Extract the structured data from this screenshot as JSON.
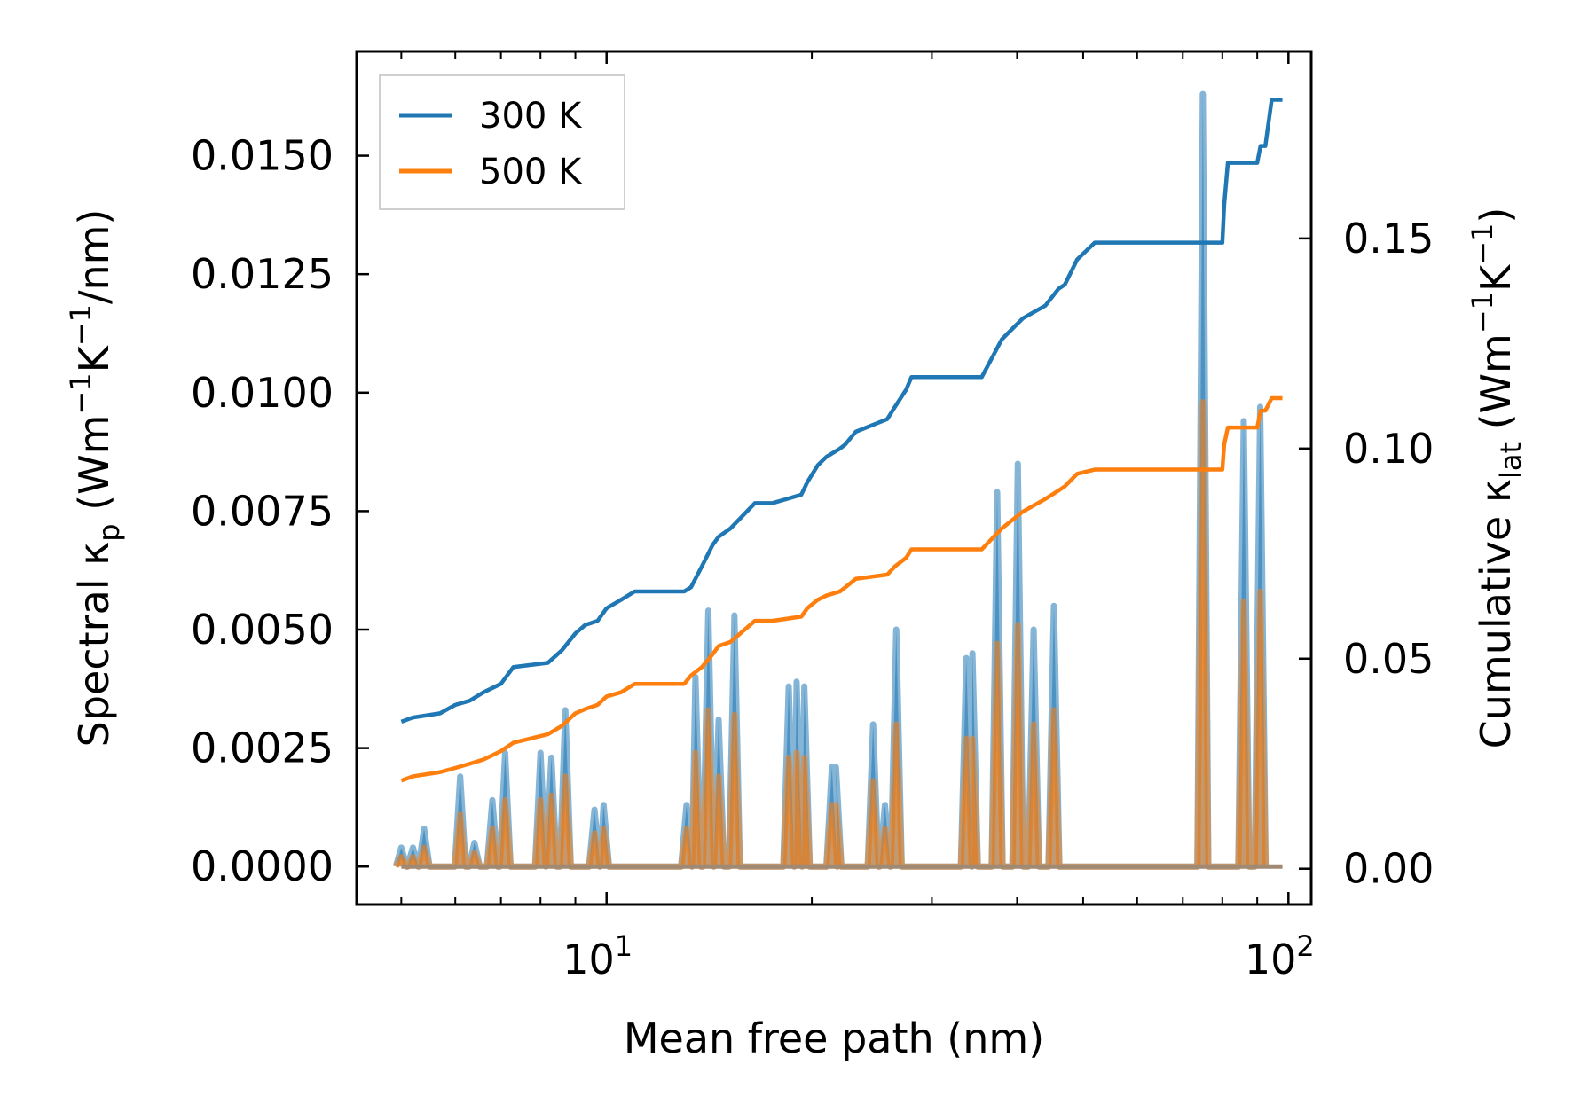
{
  "chart_data": {
    "type": "line",
    "xlabel": "Mean free path (nm)",
    "x_scale": "log",
    "xlim": [
      4.3,
      108
    ],
    "x_ticks": [
      {
        "value": 10,
        "base": "10",
        "exp": "1"
      },
      {
        "value": 100,
        "base": "10",
        "exp": "2"
      }
    ],
    "ylabel_left": {
      "pre": "Spectral κ",
      "sub": "p",
      "mid1": " (Wm",
      "sup1": "−1",
      "mid2": "K",
      "sup2": "−1",
      "post": "/nm)"
    },
    "ylabel_right": {
      "pre": "Cumulative κ",
      "sub": "lat",
      "mid1": " (Wm",
      "sup1": "−1",
      "mid2": "K",
      "sup2": "−1",
      "post": ")"
    },
    "ylim_left": [
      -0.0008,
      0.0172
    ],
    "ylim_right": [
      -0.0085,
      0.1945
    ],
    "y_ticks_left": [
      "0.0000",
      "0.0025",
      "0.0050",
      "0.0075",
      "0.0100",
      "0.0125",
      "0.0150"
    ],
    "y_ticks_right": [
      "0.00",
      "0.05",
      "0.10",
      "0.15"
    ],
    "legend": {
      "entries": [
        "300 K",
        "500 K"
      ],
      "position": "top-left"
    },
    "colors": {
      "300 K": "#1f77b4",
      "500 K": "#ff7f0e"
    },
    "series": [
      {
        "name": "300 K",
        "axis": "right",
        "type": "step-line",
        "x": [
          5.0,
          5.2,
          5.7,
          6.0,
          6.3,
          6.6,
          7.0,
          7.3,
          8.2,
          8.6,
          9.0,
          9.3,
          9.7,
          10.0,
          10.5,
          11.0,
          13.0,
          13.3,
          13.8,
          14.3,
          14.6,
          15.2,
          16.5,
          17.5,
          19.3,
          19.7,
          20.4,
          21.0,
          22.0,
          22.4,
          23.2,
          25.8,
          26.5,
          27.5,
          28.0,
          29.5,
          35.5,
          38.0,
          40.8,
          44.0,
          46.0,
          47.0,
          49.0,
          52.0,
          80.0,
          80.5,
          81.5,
          90.0,
          91.0,
          92.5,
          94.5,
          98.0
        ],
        "y": [
          0.035,
          0.036,
          0.037,
          0.039,
          0.04,
          0.042,
          0.044,
          0.048,
          0.049,
          0.052,
          0.056,
          0.058,
          0.059,
          0.062,
          0.064,
          0.066,
          0.066,
          0.067,
          0.072,
          0.077,
          0.079,
          0.081,
          0.087,
          0.087,
          0.089,
          0.092,
          0.096,
          0.098,
          0.1,
          0.101,
          0.104,
          0.107,
          0.11,
          0.114,
          0.117,
          0.117,
          0.117,
          0.126,
          0.131,
          0.134,
          0.138,
          0.139,
          0.145,
          0.149,
          0.149,
          0.158,
          0.168,
          0.168,
          0.172,
          0.172,
          0.183,
          0.183
        ]
      },
      {
        "name": "500 K",
        "axis": "right",
        "type": "step-line",
        "x": [
          5.0,
          5.2,
          5.7,
          6.0,
          6.3,
          6.6,
          7.0,
          7.3,
          8.2,
          8.6,
          9.0,
          9.3,
          9.7,
          10.0,
          10.5,
          11.0,
          13.0,
          13.3,
          13.8,
          14.3,
          14.6,
          15.2,
          16.5,
          17.5,
          19.3,
          19.7,
          20.4,
          21.0,
          22.0,
          22.4,
          23.2,
          25.8,
          26.5,
          27.5,
          28.0,
          29.5,
          35.5,
          38.0,
          40.8,
          44.0,
          46.0,
          47.0,
          49.0,
          52.0,
          80.0,
          80.5,
          81.5,
          90.0,
          91.0,
          92.5,
          94.5,
          98.0
        ],
        "y": [
          0.021,
          0.022,
          0.023,
          0.024,
          0.025,
          0.026,
          0.028,
          0.03,
          0.032,
          0.034,
          0.037,
          0.038,
          0.039,
          0.041,
          0.042,
          0.044,
          0.044,
          0.046,
          0.048,
          0.051,
          0.053,
          0.054,
          0.059,
          0.059,
          0.06,
          0.062,
          0.064,
          0.065,
          0.066,
          0.067,
          0.069,
          0.07,
          0.072,
          0.074,
          0.076,
          0.076,
          0.076,
          0.081,
          0.085,
          0.088,
          0.09,
          0.091,
          0.094,
          0.095,
          0.095,
          0.101,
          0.105,
          0.105,
          0.109,
          0.109,
          0.112,
          0.112
        ]
      },
      {
        "name": "300 K spectral",
        "axis": "left",
        "type": "filled-spikes",
        "peaks": [
          [
            5.0,
            0.0004
          ],
          [
            5.2,
            0.0004
          ],
          [
            5.4,
            0.0008
          ],
          [
            6.1,
            0.0019
          ],
          [
            6.4,
            0.0005
          ],
          [
            6.8,
            0.0014
          ],
          [
            7.1,
            0.0024
          ],
          [
            8.0,
            0.0024
          ],
          [
            8.3,
            0.0023
          ],
          [
            8.7,
            0.0033
          ],
          [
            9.6,
            0.0012
          ],
          [
            9.9,
            0.0013
          ],
          [
            13.1,
            0.0013
          ],
          [
            13.5,
            0.004
          ],
          [
            14.1,
            0.0054
          ],
          [
            14.6,
            0.0031
          ],
          [
            15.4,
            0.0053
          ],
          [
            18.5,
            0.0038
          ],
          [
            19.0,
            0.0039
          ],
          [
            19.5,
            0.0038
          ],
          [
            21.4,
            0.0021
          ],
          [
            21.7,
            0.0021
          ],
          [
            24.6,
            0.003
          ],
          [
            25.6,
            0.0013
          ],
          [
            26.6,
            0.005
          ],
          [
            33.7,
            0.0044
          ],
          [
            34.4,
            0.0045
          ],
          [
            37.4,
            0.0079
          ],
          [
            40.1,
            0.0085
          ],
          [
            42.3,
            0.005
          ],
          [
            45.3,
            0.0055
          ],
          [
            74.9,
            0.0163
          ],
          [
            86.0,
            0.0094
          ],
          [
            90.9,
            0.0097
          ]
        ]
      },
      {
        "name": "500 K spectral",
        "axis": "left",
        "type": "filled-spikes",
        "peaks": [
          [
            5.0,
            0.0002
          ],
          [
            5.2,
            0.0002
          ],
          [
            5.4,
            0.0004
          ],
          [
            6.1,
            0.0011
          ],
          [
            6.4,
            0.0003
          ],
          [
            6.8,
            0.0008
          ],
          [
            7.1,
            0.0014
          ],
          [
            8.0,
            0.0014
          ],
          [
            8.3,
            0.0015
          ],
          [
            8.7,
            0.0019
          ],
          [
            9.6,
            0.0007
          ],
          [
            9.9,
            0.0008
          ],
          [
            13.1,
            0.0008
          ],
          [
            13.5,
            0.0024
          ],
          [
            14.1,
            0.0033
          ],
          [
            14.6,
            0.0019
          ],
          [
            15.4,
            0.0032
          ],
          [
            18.5,
            0.0023
          ],
          [
            19.0,
            0.0024
          ],
          [
            19.5,
            0.0023
          ],
          [
            21.4,
            0.0013
          ],
          [
            21.7,
            0.0013
          ],
          [
            24.6,
            0.0018
          ],
          [
            25.6,
            0.0008
          ],
          [
            26.6,
            0.003
          ],
          [
            33.7,
            0.0027
          ],
          [
            34.4,
            0.0027
          ],
          [
            37.4,
            0.0047
          ],
          [
            40.1,
            0.0051
          ],
          [
            42.3,
            0.003
          ],
          [
            45.3,
            0.0033
          ],
          [
            74.9,
            0.0098
          ],
          [
            86.0,
            0.0056
          ],
          [
            90.9,
            0.0058
          ]
        ]
      }
    ]
  }
}
